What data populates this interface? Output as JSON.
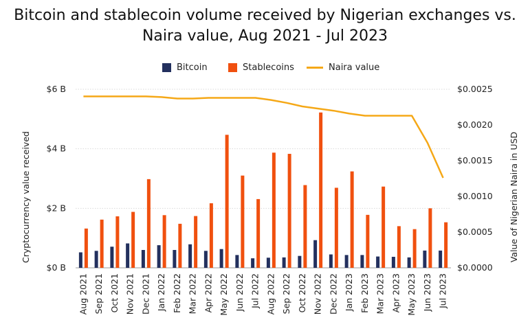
{
  "chart_data": {
    "type": "bar",
    "title_line1": "Bitcoin and stablecoin volume received by Nigerian exchanges vs.",
    "title_line2": "Naira value, Aug 2021 - Jul 2023",
    "ylabel_left": "Cryptocurrency value received",
    "ylabel_right": "Value of Nigerian Naira in USD",
    "ylim_left": [
      0,
      6
    ],
    "ylim_right": [
      0,
      0.0025
    ],
    "yticks_left": [
      "$0 B",
      "$2 B",
      "$4 B",
      "$6 B"
    ],
    "yticks_right": [
      "$0.0000",
      "$0.0005",
      "$0.0010",
      "$0.0015",
      "$0.0020",
      "$0.0025"
    ],
    "legend_placement": "top-center",
    "categories": [
      "Aug 2021",
      "Sep 2021",
      "Oct 2021",
      "Nov 2021",
      "Dec 2021",
      "Jan 2022",
      "Feb 2022",
      "Mar 2022",
      "Apr 2022",
      "May 2022",
      "Jun 2022",
      "Jul 2022",
      "Aug 2022",
      "Sep 2022",
      "Oct 2022",
      "Nov 2022",
      "Dec 2022",
      "Jan 2023",
      "Feb 2023",
      "Mar 2023",
      "Apr 2023",
      "May 2023",
      "Jun 2023",
      "Jul 2023"
    ],
    "series": [
      {
        "name": "Bitcoin",
        "kind": "bar",
        "axis": "left",
        "color": "#23305e",
        "values": [
          0.52,
          0.57,
          0.71,
          0.82,
          0.6,
          0.76,
          0.6,
          0.79,
          0.57,
          0.63,
          0.43,
          0.32,
          0.34,
          0.35,
          0.4,
          0.93,
          0.45,
          0.43,
          0.43,
          0.38,
          0.37,
          0.35,
          0.58,
          0.58
        ]
      },
      {
        "name": "Stablecoins",
        "kind": "bar",
        "axis": "left",
        "color": "#f0500f",
        "values": [
          1.32,
          1.62,
          1.73,
          1.88,
          2.98,
          1.77,
          1.48,
          1.74,
          2.17,
          4.47,
          3.1,
          2.31,
          3.87,
          3.83,
          2.78,
          5.22,
          2.69,
          3.24,
          1.78,
          2.73,
          1.4,
          1.3,
          2.0,
          1.53
        ]
      },
      {
        "name": "Naira value",
        "kind": "line",
        "axis": "right",
        "color": "#f5a817",
        "values": [
          0.0024,
          0.0024,
          0.0024,
          0.0024,
          0.0024,
          0.00239,
          0.00237,
          0.00237,
          0.00238,
          0.00238,
          0.00238,
          0.00238,
          0.00235,
          0.00231,
          0.00226,
          0.00223,
          0.0022,
          0.00216,
          0.00213,
          0.00213,
          0.00213,
          0.00213,
          0.00175,
          0.00126
        ]
      }
    ]
  }
}
